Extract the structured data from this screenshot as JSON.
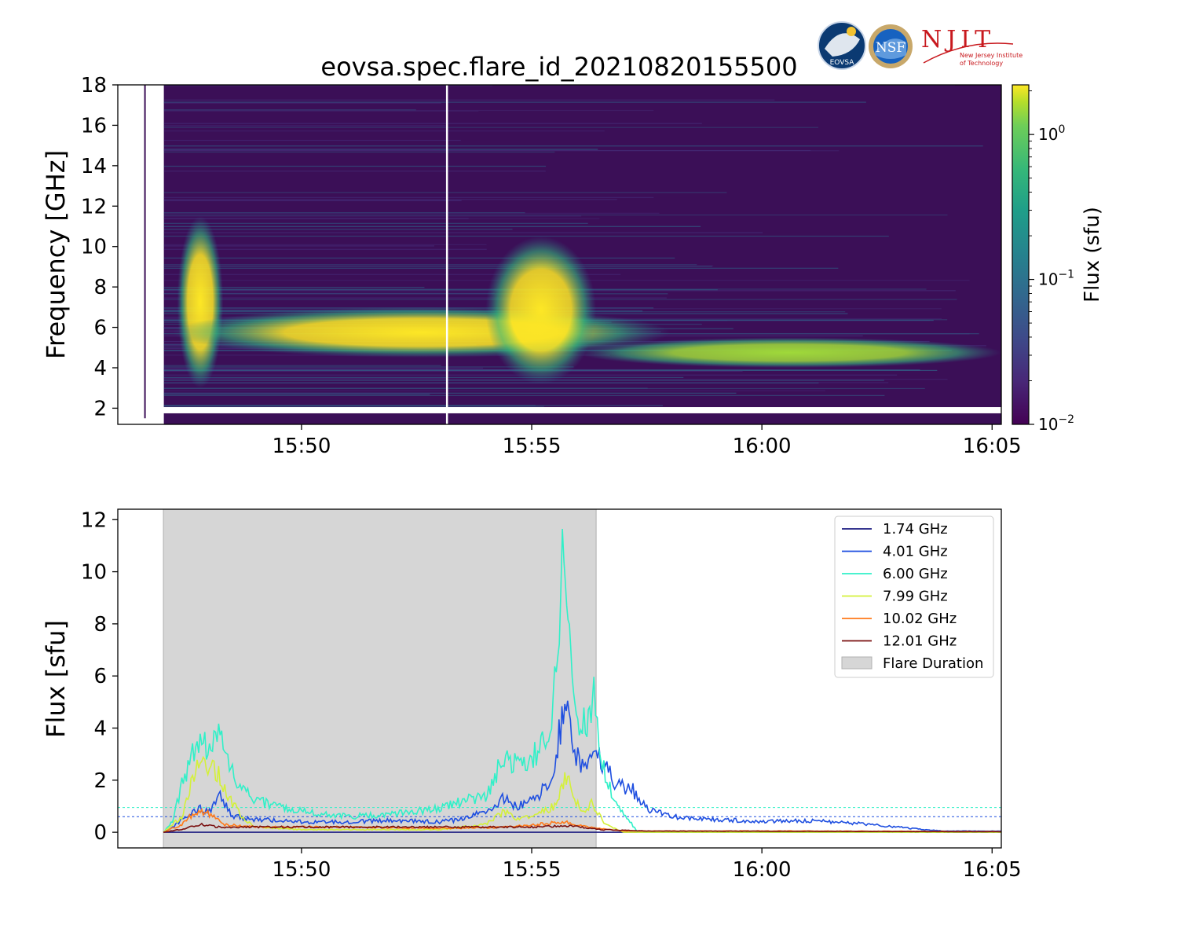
{
  "figure": {
    "title": "eovsa.spec.flare_id_20210820155500",
    "logos": [
      {
        "name": "eovsa-logo",
        "text": "EOVSA"
      },
      {
        "name": "nsf-logo",
        "text": "NSF"
      },
      {
        "name": "njit-logo",
        "text": "NJIT",
        "subtext_1": "New Jersey Institute",
        "subtext_2": "of Technology"
      }
    ]
  },
  "chart_data": [
    {
      "type": "heatmap",
      "panel": "dynamic-spectrum",
      "ylabel": "Frequency [GHz]",
      "ylim": [
        1.2,
        18
      ],
      "yticks": [
        2,
        4,
        6,
        8,
        10,
        12,
        14,
        16,
        18
      ],
      "xlim_minutes": [
        -8.99,
        10.2
      ],
      "xtick_labels": [
        "15:50",
        "15:55",
        "16:00",
        "16:05"
      ],
      "xtick_minutes": [
        -5,
        0,
        5,
        10
      ],
      "colorbar": {
        "label": "Flux  (sfu)",
        "scale": "log",
        "range": [
          0.01,
          2.2
        ],
        "ticks": [
          {
            "base": "10",
            "exp": "−2",
            "value": 0.01
          },
          {
            "base": "10",
            "exp": "−1",
            "value": 0.1
          },
          {
            "base": "10",
            "exp": "0",
            "value": 1
          }
        ],
        "colormap": "viridis"
      },
      "emission_regions": [
        {
          "t_start": -7.7,
          "t_end": -6.7,
          "f_low": 3.0,
          "f_high": 11.5,
          "peak_flux": 2.0
        },
        {
          "t_start": -7.8,
          "t_end": 3.0,
          "f_low": 4.5,
          "f_high": 7.0,
          "peak_flux": 1.2
        },
        {
          "t_start": -1.0,
          "t_end": 1.4,
          "f_low": 3.2,
          "f_high": 10.5,
          "peak_flux": 2.2
        },
        {
          "t_start": 1.0,
          "t_end": 10.2,
          "f_low": 4.0,
          "f_high": 5.5,
          "peak_flux": 0.8
        }
      ]
    },
    {
      "type": "line",
      "panel": "light-curves",
      "ylabel": "Flux [sfu]",
      "ylim": [
        -0.6,
        12.4
      ],
      "yticks": [
        0,
        2,
        4,
        6,
        8,
        10,
        12
      ],
      "xlim_minutes": [
        -8.99,
        10.2
      ],
      "xtick_labels": [
        "15:50",
        "15:55",
        "16:00",
        "16:05"
      ],
      "xtick_minutes": [
        -5,
        0,
        5,
        10
      ],
      "flare_duration_minutes": [
        -8.0,
        1.4
      ],
      "series": [
        {
          "name": "1.74 GHz",
          "color": "#1a1a80",
          "points": [
            [
              -8.0,
              0.0
            ],
            [
              10.2,
              0.0
            ]
          ]
        },
        {
          "name": "4.01 GHz",
          "color": "#1f4fe0",
          "points": [
            [
              -8.0,
              0.0
            ],
            [
              -7.8,
              0.2
            ],
            [
              -7.5,
              0.6
            ],
            [
              -7.2,
              0.9
            ],
            [
              -7.0,
              0.8
            ],
            [
              -6.8,
              1.5
            ],
            [
              -6.5,
              0.6
            ],
            [
              -6.0,
              0.5
            ],
            [
              -5.0,
              0.4
            ],
            [
              -4.0,
              0.4
            ],
            [
              -3.0,
              0.45
            ],
            [
              -2.0,
              0.4
            ],
            [
              -1.5,
              0.5
            ],
            [
              -1.0,
              0.8
            ],
            [
              -0.6,
              1.3
            ],
            [
              -0.3,
              1.0
            ],
            [
              0.0,
              1.2
            ],
            [
              0.3,
              1.7
            ],
            [
              0.5,
              2.8
            ],
            [
              0.75,
              5.3
            ],
            [
              0.9,
              3.2
            ],
            [
              1.1,
              2.5
            ],
            [
              1.4,
              3.2
            ],
            [
              1.6,
              2.6
            ],
            [
              1.8,
              1.8
            ],
            [
              2.2,
              1.6
            ],
            [
              2.5,
              0.9
            ],
            [
              3.0,
              0.6
            ],
            [
              4.0,
              0.5
            ],
            [
              5.0,
              0.4
            ],
            [
              6.0,
              0.45
            ],
            [
              7.0,
              0.35
            ],
            [
              8.0,
              0.2
            ],
            [
              8.5,
              0.1
            ],
            [
              9.0,
              0.05
            ],
            [
              10.2,
              0.05
            ]
          ]
        },
        {
          "name": "6.00 GHz",
          "color": "#30f0c8",
          "points": [
            [
              -8.0,
              0.0
            ],
            [
              -7.8,
              0.4
            ],
            [
              -7.6,
              1.8
            ],
            [
              -7.3,
              3.5
            ],
            [
              -7.0,
              3.3
            ],
            [
              -6.8,
              4.0
            ],
            [
              -6.6,
              2.8
            ],
            [
              -6.4,
              1.8
            ],
            [
              -6.0,
              1.2
            ],
            [
              -5.5,
              1.0
            ],
            [
              -5.0,
              0.8
            ],
            [
              -4.0,
              0.6
            ],
            [
              -3.0,
              0.7
            ],
            [
              -2.0,
              0.9
            ],
            [
              -1.5,
              1.2
            ],
            [
              -1.0,
              1.4
            ],
            [
              -0.7,
              2.5
            ],
            [
              -0.5,
              2.8
            ],
            [
              -0.3,
              2.5
            ],
            [
              0.0,
              2.8
            ],
            [
              0.3,
              3.5
            ],
            [
              0.5,
              5.5
            ],
            [
              0.7,
              11.8
            ],
            [
              0.85,
              7.8
            ],
            [
              1.0,
              4.5
            ],
            [
              1.2,
              4.0
            ],
            [
              1.35,
              5.3
            ],
            [
              1.5,
              2.8
            ],
            [
              1.8,
              1.2
            ],
            [
              2.1,
              0.5
            ],
            [
              2.3,
              0.0
            ],
            [
              10.2,
              0.0
            ]
          ]
        },
        {
          "name": "7.99 GHz",
          "color": "#d4f03a",
          "points": [
            [
              -8.0,
              0.0
            ],
            [
              -7.6,
              0.6
            ],
            [
              -7.3,
              2.5
            ],
            [
              -7.0,
              2.6
            ],
            [
              -6.8,
              2.3
            ],
            [
              -6.6,
              1.4
            ],
            [
              -6.3,
              0.6
            ],
            [
              -6.0,
              0.2
            ],
            [
              -5.0,
              0.1
            ],
            [
              -2.0,
              0.1
            ],
            [
              -1.0,
              0.3
            ],
            [
              -0.6,
              0.8
            ],
            [
              -0.3,
              0.5
            ],
            [
              0.0,
              0.6
            ],
            [
              0.5,
              1.0
            ],
            [
              0.75,
              2.2
            ],
            [
              0.9,
              1.3
            ],
            [
              1.1,
              0.8
            ],
            [
              1.3,
              1.1
            ],
            [
              1.6,
              0.3
            ],
            [
              2.0,
              0.0
            ],
            [
              10.2,
              0.0
            ]
          ]
        },
        {
          "name": "10.02 GHz",
          "color": "#ff7a1a",
          "points": [
            [
              -8.0,
              0.0
            ],
            [
              -7.6,
              0.3
            ],
            [
              -7.3,
              0.8
            ],
            [
              -7.0,
              0.7
            ],
            [
              -6.7,
              0.3
            ],
            [
              -6.0,
              0.2
            ],
            [
              -4.0,
              0.2
            ],
            [
              -2.0,
              0.15
            ],
            [
              -0.5,
              0.2
            ],
            [
              0.7,
              0.4
            ],
            [
              1.2,
              0.2
            ],
            [
              2.0,
              0.05
            ],
            [
              6.0,
              0.05
            ],
            [
              10.2,
              0.03
            ]
          ]
        },
        {
          "name": "12.01 GHz",
          "color": "#7a1010",
          "points": [
            [
              -8.0,
              0.0
            ],
            [
              -7.5,
              0.15
            ],
            [
              -7.2,
              0.3
            ],
            [
              -6.8,
              0.2
            ],
            [
              -6.0,
              0.2
            ],
            [
              -4.0,
              0.2
            ],
            [
              -2.0,
              0.2
            ],
            [
              0.0,
              0.2
            ],
            [
              0.8,
              0.25
            ],
            [
              1.5,
              0.1
            ],
            [
              2.5,
              0.05
            ],
            [
              10.2,
              0.02
            ]
          ]
        }
      ],
      "reference_lines": [
        {
          "color": "#30f0c8",
          "value": 0.95
        },
        {
          "color": "#1f4fe0",
          "value": 0.6
        }
      ],
      "legend": {
        "position": "top-right",
        "entries": [
          "1.74 GHz",
          "4.01 GHz",
          "6.00 GHz",
          "7.99 GHz",
          "10.02 GHz",
          "12.01 GHz",
          "Flare Duration"
        ]
      }
    }
  ]
}
